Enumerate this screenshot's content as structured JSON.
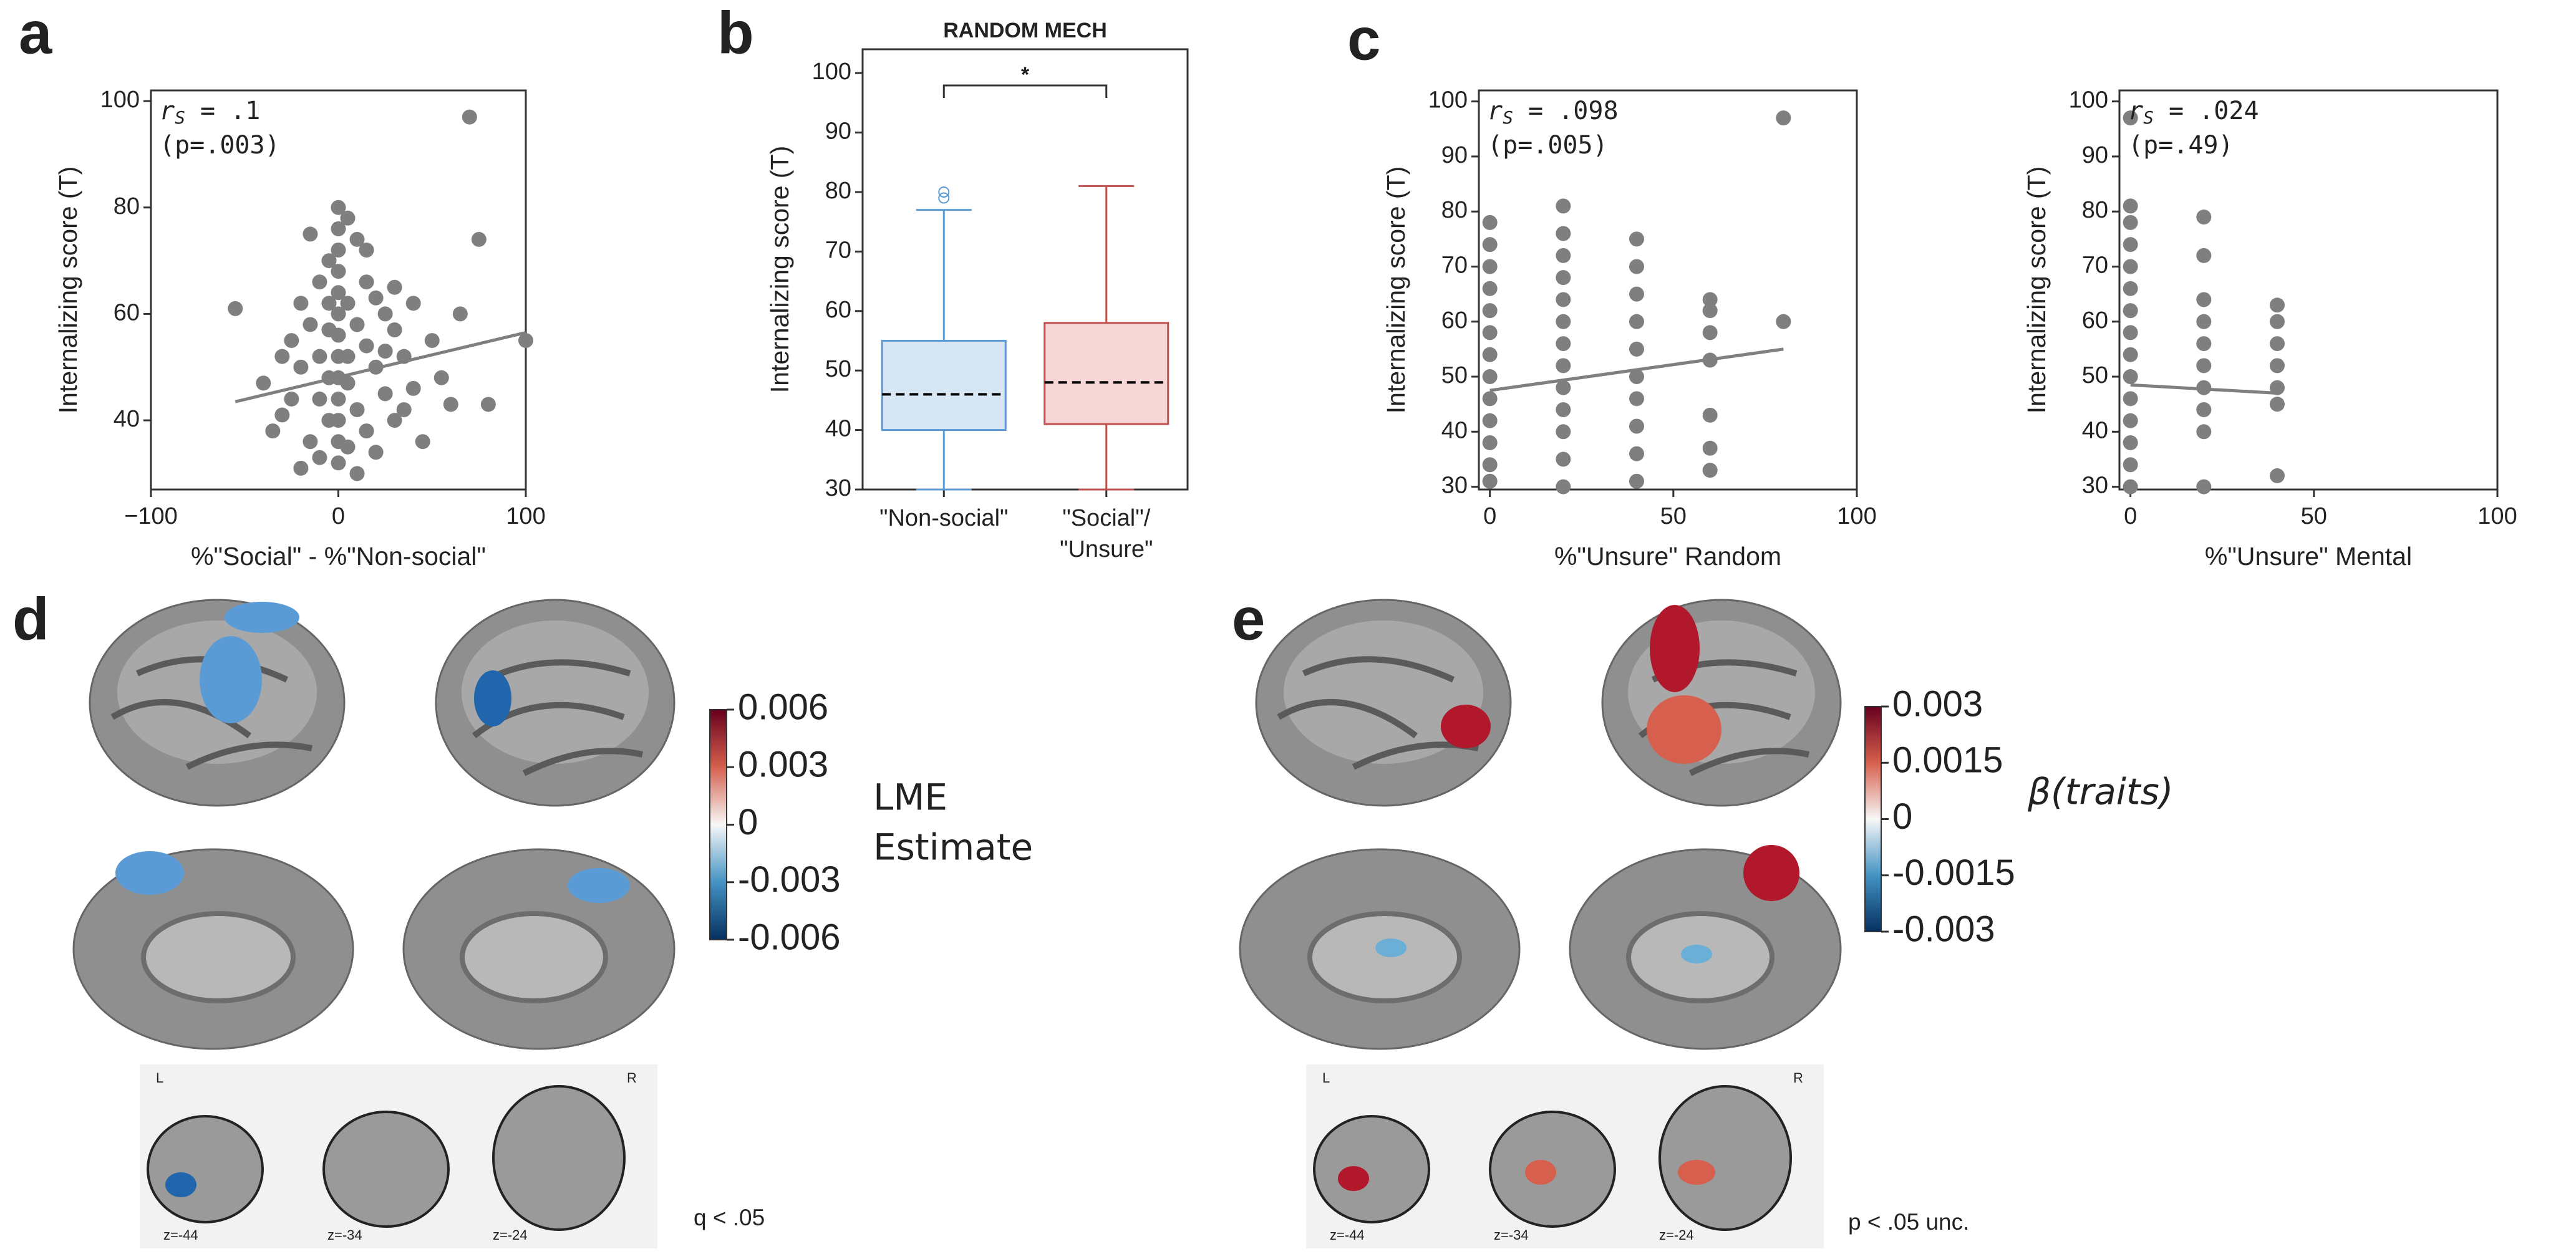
{
  "chart_data": [
    {
      "type": "scatter",
      "xlabel": "%\"Social\" - %\"Non-social\"",
      "ylabel": "Internalizing score (T)",
      "color": "#7f7f7f",
      "stat_symbol": "r",
      "stat_sub": "S",
      "stat_value": " = .1",
      "p_value": "(p=.003)",
      "xlim": [
        -100,
        100
      ],
      "xticks": [
        {
          "value": -100,
          "label": "−100"
        },
        0,
        100
      ],
      "ylim": [
        27,
        102
      ],
      "yticks": [
        40,
        60,
        80,
        100
      ],
      "x": [
        -55,
        -40,
        -35,
        -30,
        -25,
        -25,
        -20,
        -20,
        -15,
        -15,
        -10,
        -10,
        -10,
        -10,
        -5,
        -5,
        -5,
        -5,
        0,
        0,
        0,
        0,
        0,
        0,
        0,
        0,
        0,
        0,
        0,
        0,
        0,
        5,
        5,
        5,
        5,
        10,
        10,
        10,
        15,
        15,
        15,
        20,
        20,
        20,
        25,
        25,
        30,
        30,
        35,
        40,
        40,
        45,
        50,
        55,
        60,
        65,
        70,
        75,
        80,
        100,
        -20,
        10,
        30,
        -30,
        15,
        -15,
        25,
        5,
        -5,
        35
      ],
      "values": [
        61,
        47,
        38,
        41,
        55,
        44,
        62,
        50,
        58,
        36,
        66,
        52,
        44,
        33,
        70,
        57,
        48,
        40,
        80,
        76,
        72,
        68,
        64,
        60,
        56,
        52,
        48,
        44,
        40,
        36,
        32,
        78,
        62,
        47,
        35,
        74,
        58,
        42,
        66,
        54,
        38,
        63,
        50,
        34,
        60,
        45,
        57,
        40,
        52,
        62,
        46,
        36,
        55,
        48,
        43,
        60,
        97,
        74,
        43,
        55,
        31,
        30,
        65,
        52,
        72,
        75,
        53,
        52,
        62,
        42
      ],
      "trend": {
        "x": [
          -55,
          100
        ],
        "y": [
          43.5,
          56.5
        ]
      }
    },
    {
      "type": "box",
      "title": "RANDOM MECH",
      "ylabel": "Internalizing score (T)",
      "categories": [
        "\"Non-social\"",
        [
          "\"Social\"/",
          "\"Unsure\""
        ]
      ],
      "ylim": [
        30,
        104
      ],
      "yticks": [
        30,
        40,
        50,
        60,
        70,
        80,
        90,
        100
      ],
      "significance": "*",
      "boxes": [
        {
          "whisker_low": 30,
          "q1": 40,
          "median": 46,
          "q3": 55,
          "whisker_high": 77,
          "outliers": [
            79,
            80
          ],
          "color": "#5b9bd5",
          "fill": "#d6e6f4"
        },
        {
          "whisker_low": 30,
          "q1": 41,
          "median": 48,
          "q3": 58,
          "whisker_high": 81,
          "outliers": [],
          "color": "#c0504d",
          "fill": "#f6d6d6"
        }
      ]
    },
    {
      "type": "scatter",
      "xlabel": "%\"Unsure\" Random",
      "ylabel": "Internalizing score (T)",
      "color": "#7f7f7f",
      "stat_symbol": "r",
      "stat_sub": "S",
      "stat_value": " = .098",
      "p_value": "(p=.005)",
      "xlim": [
        -3,
        100
      ],
      "xticks": [
        0,
        50,
        100
      ],
      "ylim": [
        29.5,
        102
      ],
      "yticks": [
        30,
        40,
        50,
        60,
        70,
        80,
        90,
        100
      ],
      "x": [
        0,
        0,
        0,
        0,
        0,
        0,
        0,
        0,
        0,
        0,
        0,
        0,
        0,
        20,
        20,
        20,
        20,
        20,
        20,
        20,
        20,
        20,
        20,
        20,
        20,
        20,
        40,
        40,
        40,
        40,
        40,
        40,
        40,
        40,
        40,
        40,
        60,
        60,
        60,
        60,
        60,
        60,
        60,
        80,
        80
      ],
      "values": [
        31,
        34,
        38,
        42,
        46,
        50,
        54,
        58,
        62,
        66,
        70,
        74,
        78,
        30,
        35,
        40,
        44,
        48,
        52,
        56,
        60,
        64,
        68,
        72,
        76,
        81,
        31,
        36,
        41,
        46,
        50,
        55,
        60,
        65,
        70,
        75,
        33,
        37,
        43,
        53,
        58,
        62,
        64,
        60,
        97
      ],
      "trend": {
        "x": [
          0,
          80
        ],
        "y": [
          47.5,
          55
        ]
      }
    },
    {
      "type": "scatter",
      "xlabel": "%\"Unsure\" Mental",
      "ylabel": "Internalizing score (T)",
      "color": "#7f7f7f",
      "stat_symbol": "r",
      "stat_sub": "S",
      "stat_value": " = .024",
      "p_value": "(p=.49)",
      "xlim": [
        -3,
        100
      ],
      "xticks": [
        0,
        50,
        100
      ],
      "ylim": [
        29.5,
        102
      ],
      "yticks": [
        30,
        40,
        50,
        60,
        70,
        80,
        90,
        100
      ],
      "x": [
        0,
        0,
        0,
        0,
        0,
        0,
        0,
        0,
        0,
        0,
        0,
        0,
        0,
        0,
        0,
        20,
        20,
        20,
        20,
        20,
        20,
        20,
        20,
        20,
        20,
        40,
        40,
        40,
        40,
        40,
        40,
        40
      ],
      "values": [
        30,
        34,
        38,
        42,
        46,
        50,
        54,
        58,
        62,
        66,
        70,
        74,
        78,
        81,
        97,
        30,
        40,
        44,
        48,
        52,
        56,
        60,
        64,
        72,
        79,
        32,
        45,
        48,
        52,
        56,
        60,
        63
      ],
      "trend": {
        "x": [
          0,
          40
        ],
        "y": [
          48.5,
          47
        ]
      }
    },
    {
      "type": "colorbar",
      "label": [
        "LME",
        "Estimate"
      ],
      "italic": false,
      "clim": [
        -0.006,
        0.006
      ],
      "ticks": [
        0.006,
        0.003,
        0,
        -0.003,
        -0.006
      ],
      "colors": [
        "#053061",
        "#4393c3",
        "#f7f7f7",
        "#d6604d",
        "#67001f"
      ]
    },
    {
      "type": "colorbar",
      "label": [
        "β(traits)"
      ],
      "italic": true,
      "clim": [
        -0.003,
        0.003
      ],
      "ticks": [
        0.003,
        0.0015,
        0,
        -0.0015,
        -0.003
      ],
      "colors": [
        "#053061",
        "#4393c3",
        "#f7f7f7",
        "#d6604d",
        "#67001f"
      ]
    }
  ],
  "panel_labels": [
    "a",
    "b",
    "c",
    "d",
    "e"
  ],
  "brain_maps": [
    {
      "hemispheres": [
        "L",
        "R"
      ],
      "slices": [
        "z=-44",
        "z=-34",
        "z=-24"
      ],
      "note": "q < .05"
    },
    {
      "hemispheres": [
        "L",
        "R"
      ],
      "slices": [
        "z=-44",
        "z=-34",
        "z=-24"
      ],
      "note": "p < .05 unc."
    }
  ]
}
